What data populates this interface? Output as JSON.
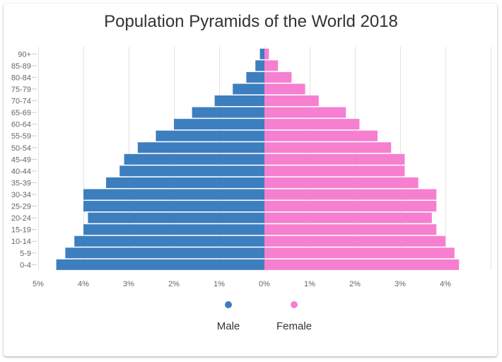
{
  "chart_data": {
    "type": "bar",
    "orientation": "horizontal-diverging",
    "title": "Population Pyramids of the World 2018",
    "categories": [
      "90+",
      "85-89",
      "80-84",
      "75-79",
      "70-74",
      "65-69",
      "60-64",
      "55-59",
      "50-54",
      "45-49",
      "40-44",
      "35-39",
      "30-34",
      "25-29",
      "20-24",
      "15-19",
      "10-14",
      "5-9",
      "0-4"
    ],
    "series": [
      {
        "name": "Male",
        "color": "#3d7ebf",
        "values": [
          0.1,
          0.2,
          0.4,
          0.7,
          1.1,
          1.6,
          2.0,
          2.4,
          2.8,
          3.1,
          3.2,
          3.5,
          4.0,
          4.0,
          3.9,
          4.0,
          4.2,
          4.4,
          4.6
        ]
      },
      {
        "name": "Female",
        "color": "#f67fd0",
        "values": [
          0.1,
          0.3,
          0.6,
          0.9,
          1.2,
          1.8,
          2.1,
          2.5,
          2.8,
          3.1,
          3.1,
          3.4,
          3.8,
          3.8,
          3.7,
          3.8,
          4.0,
          4.2,
          4.3
        ]
      }
    ],
    "x_ticks": [
      "5%",
      "4%",
      "3%",
      "2%",
      "1%",
      "0%",
      "1%",
      "2%",
      "3%",
      "4%"
    ],
    "x_tick_values": [
      -5,
      -4,
      -3,
      -2,
      -1,
      0,
      1,
      2,
      3,
      4
    ],
    "xlim": [
      -5,
      5
    ],
    "grid": true,
    "legend_position": "bottom"
  }
}
